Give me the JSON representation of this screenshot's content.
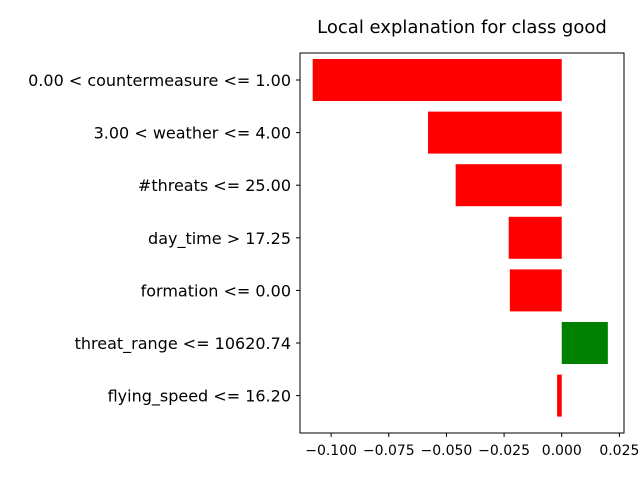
{
  "chart_data": {
    "type": "bar",
    "orientation": "horizontal",
    "title": "Local explanation for class good",
    "xlabel": "",
    "ylabel": "",
    "categories": [
      "0.00 < countermeasure <= 1.00",
      "3.00 < weather <= 4.00",
      "#threats <= 25.00",
      "day_time > 17.25",
      "formation <= 0.00",
      "threat_range <= 10620.74",
      "flying_speed <= 16.20"
    ],
    "values": [
      -0.108,
      -0.058,
      -0.046,
      -0.023,
      -0.0225,
      0.02,
      -0.002
    ],
    "xlim": [
      -0.1135,
      0.027
    ],
    "xticks": [
      -0.1,
      -0.075,
      -0.05,
      -0.025,
      0.0,
      0.025
    ],
    "xtick_labels": [
      "−0.100",
      "−0.075",
      "−0.050",
      "−0.025",
      "0.000",
      "0.025"
    ],
    "colors": {
      "positive": "#008000",
      "negative": "#ff0000"
    },
    "grid": false
  }
}
